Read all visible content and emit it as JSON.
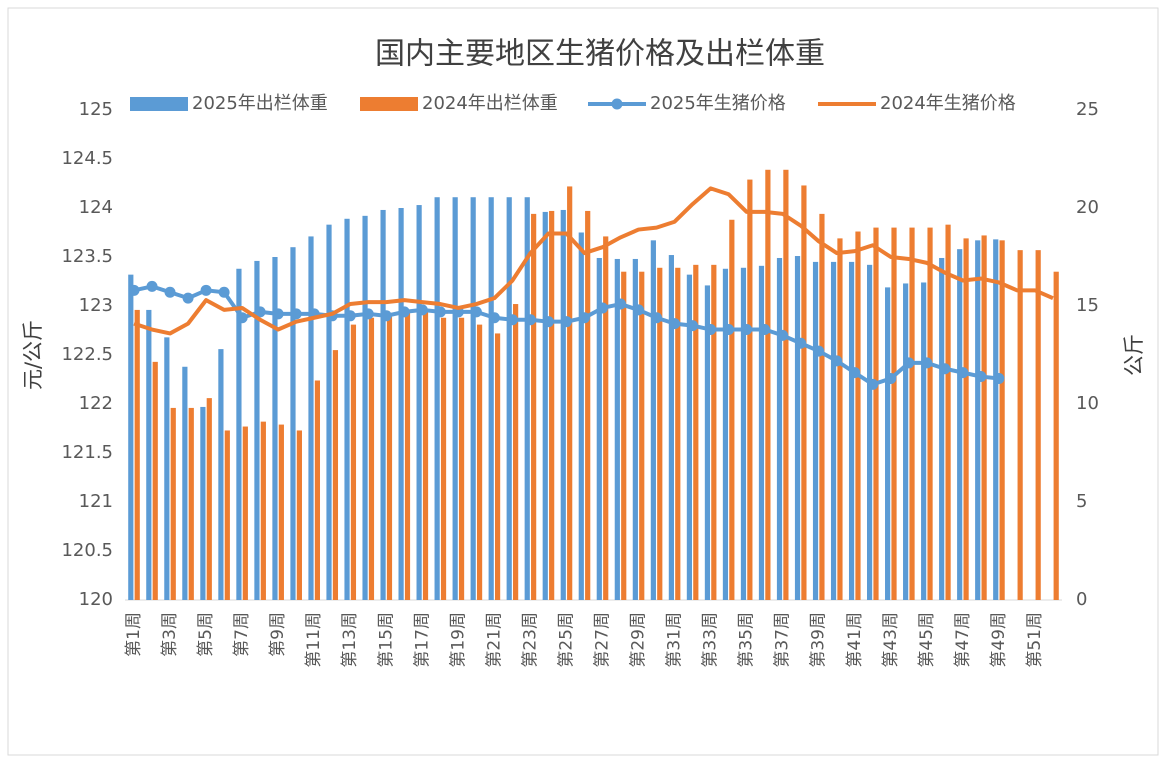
{
  "chart_data": {
    "type": "bar",
    "title": "国内主要地区生猪价格及出栏体重",
    "ylabel": "元/公斤",
    "y2label": "公斤",
    "categories": [
      "第1周",
      null,
      "第3周",
      null,
      "第5周",
      null,
      "第7周",
      null,
      "第9周",
      null,
      "第11周",
      null,
      "第13周",
      null,
      "第15周",
      null,
      "第17周",
      null,
      "第19周",
      null,
      "第21周",
      null,
      "第23周",
      null,
      "第25周",
      null,
      "第27周",
      null,
      "第29周",
      null,
      "第31周",
      null,
      "第33周",
      null,
      "第35周",
      null,
      "第37周",
      null,
      "第39周",
      null,
      "第41周",
      null,
      "第43周",
      null,
      "第45周",
      null,
      "第47周",
      null,
      "第49周",
      null,
      "第51周",
      null
    ],
    "series": [
      {
        "name": "2025年出栏体重",
        "type": "bar",
        "color": "#5b9bd5",
        "values": [
          123.32,
          122.96,
          122.68,
          122.38,
          121.97,
          122.56,
          123.38,
          123.46,
          123.5,
          123.6,
          123.71,
          123.83,
          123.89,
          123.92,
          123.98,
          124.0,
          124.03,
          124.11,
          124.11,
          124.11,
          124.11,
          124.11,
          124.11,
          123.96,
          123.98,
          123.75,
          123.49,
          123.48,
          123.48,
          123.67,
          123.52,
          123.32,
          123.21,
          123.38,
          123.39,
          123.41,
          123.49,
          123.51,
          123.45,
          123.45,
          123.45,
          123.42,
          123.19,
          123.23,
          123.24,
          123.49,
          123.58,
          123.67,
          123.68,
          null,
          null,
          null
        ]
      },
      {
        "name": "2024年出栏体重",
        "type": "bar",
        "color": "#ed7d31",
        "values": [
          122.96,
          122.43,
          121.96,
          121.96,
          122.06,
          121.73,
          121.77,
          121.82,
          121.79,
          121.73,
          122.24,
          122.55,
          122.81,
          122.88,
          122.93,
          122.94,
          122.96,
          122.88,
          122.88,
          122.81,
          122.72,
          123.02,
          123.94,
          123.97,
          124.22,
          123.97,
          123.71,
          123.35,
          123.35,
          123.39,
          123.39,
          123.42,
          123.42,
          123.88,
          124.29,
          124.39,
          124.39,
          124.23,
          123.94,
          123.69,
          123.76,
          123.8,
          123.8,
          123.8,
          123.8,
          123.83,
          123.69,
          123.72,
          123.67,
          123.57,
          123.57,
          123.35
        ]
      },
      {
        "name": "2025年生猪价格",
        "type": "line",
        "axis": "y2",
        "color": "#5b9bd5",
        "marker": true,
        "values": [
          15.8,
          16.0,
          15.7,
          15.4,
          15.8,
          15.7,
          14.4,
          14.7,
          14.6,
          14.6,
          14.6,
          14.5,
          14.5,
          14.6,
          14.5,
          14.7,
          14.8,
          14.7,
          14.7,
          14.7,
          14.4,
          14.3,
          14.3,
          14.2,
          14.2,
          14.4,
          14.9,
          15.1,
          14.8,
          14.4,
          14.1,
          14.0,
          13.8,
          13.8,
          13.8,
          13.8,
          13.5,
          13.1,
          12.7,
          12.2,
          11.6,
          11.0,
          11.3,
          12.1,
          12.1,
          11.8,
          11.6,
          11.4,
          11.3,
          null,
          null,
          null
        ]
      },
      {
        "name": "2024年生猪价格",
        "type": "line",
        "axis": "y2",
        "color": "#ed7d31",
        "marker": false,
        "values": [
          14.1,
          13.8,
          13.6,
          14.1,
          15.3,
          14.8,
          14.9,
          14.3,
          13.8,
          14.2,
          14.4,
          14.6,
          15.1,
          15.2,
          15.2,
          15.3,
          15.2,
          15.1,
          14.9,
          15.1,
          15.4,
          16.3,
          17.7,
          18.7,
          18.7,
          17.7,
          18.0,
          18.5,
          18.9,
          19.0,
          19.3,
          20.2,
          21.0,
          20.7,
          19.8,
          19.8,
          19.7,
          19.1,
          18.3,
          17.7,
          17.8,
          18.1,
          17.5,
          17.4,
          17.2,
          16.7,
          16.3,
          16.4,
          16.2,
          15.8,
          15.8,
          15.4
        ]
      }
    ],
    "ylim": [
      120,
      125
    ],
    "yticks": [
      120,
      120.5,
      121,
      121.5,
      122,
      122.5,
      123,
      123.5,
      124,
      124.5,
      125
    ],
    "y2lim": [
      0,
      25
    ],
    "y2ticks": [
      0,
      5,
      10,
      15,
      20,
      25
    ],
    "legend": "top",
    "grid": false
  }
}
